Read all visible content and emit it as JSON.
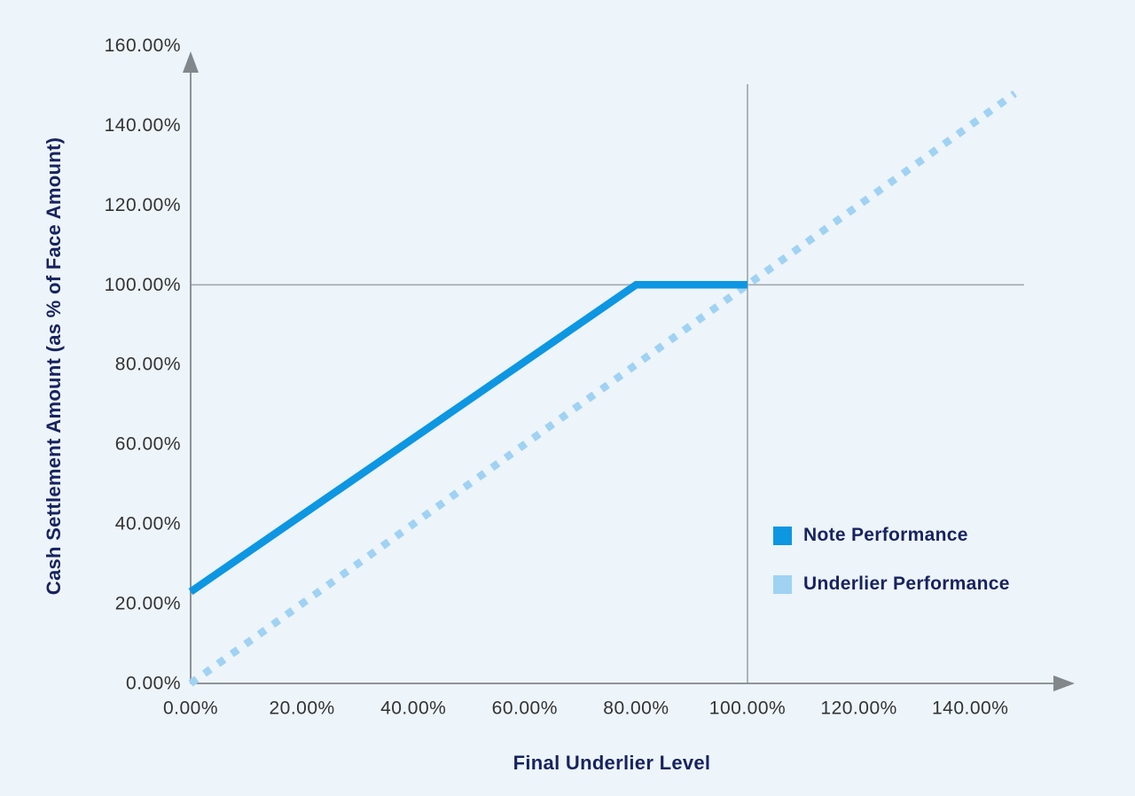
{
  "chart_data": {
    "type": "line",
    "title": "",
    "xlabel": "Final Underlier Level",
    "ylabel": "Cash Settlement Amount (as % of Face Amount)",
    "xlim": [
      0,
      150
    ],
    "ylim": [
      0,
      160
    ],
    "grid": "reference lines at 100% only",
    "legend_position": "right-middle",
    "x_ticks": [
      {
        "value": 0,
        "label": "0.00%"
      },
      {
        "value": 20,
        "label": "20.00%"
      },
      {
        "value": 40,
        "label": "40.00%"
      },
      {
        "value": 60,
        "label": "60.00%"
      },
      {
        "value": 80,
        "label": "80.00%"
      },
      {
        "value": 100,
        "label": "100.00%"
      },
      {
        "value": 120,
        "label": "120.00%"
      },
      {
        "value": 140,
        "label": "140.00%"
      }
    ],
    "y_ticks": [
      {
        "value": 0,
        "label": "0.00%"
      },
      {
        "value": 20,
        "label": "20.00%"
      },
      {
        "value": 40,
        "label": "40.00%"
      },
      {
        "value": 60,
        "label": "60.00%"
      },
      {
        "value": 80,
        "label": "80.00%"
      },
      {
        "value": 100,
        "label": "100.00%"
      },
      {
        "value": 120,
        "label": "120.00%"
      },
      {
        "value": 140,
        "label": "140.00%"
      },
      {
        "value": 160,
        "label": "160.00%"
      }
    ],
    "reference_lines": {
      "horizontal_y": 100,
      "vertical_x": 100
    },
    "series": [
      {
        "name": "Note Performance",
        "style": "solid",
        "color": "#0d96e2",
        "points": [
          [
            0,
            23
          ],
          [
            80,
            100
          ],
          [
            100,
            100
          ]
        ]
      },
      {
        "name": "Underlier Performance",
        "style": "dotted",
        "color": "#9fd2f3",
        "points": [
          [
            0,
            0
          ],
          [
            148,
            148
          ]
        ]
      }
    ],
    "colors": {
      "background": "#edf4fa",
      "axis": "#82878c",
      "grid": "#a4a9ad",
      "tick_text": "#333333",
      "title_text": "#17235f"
    }
  }
}
